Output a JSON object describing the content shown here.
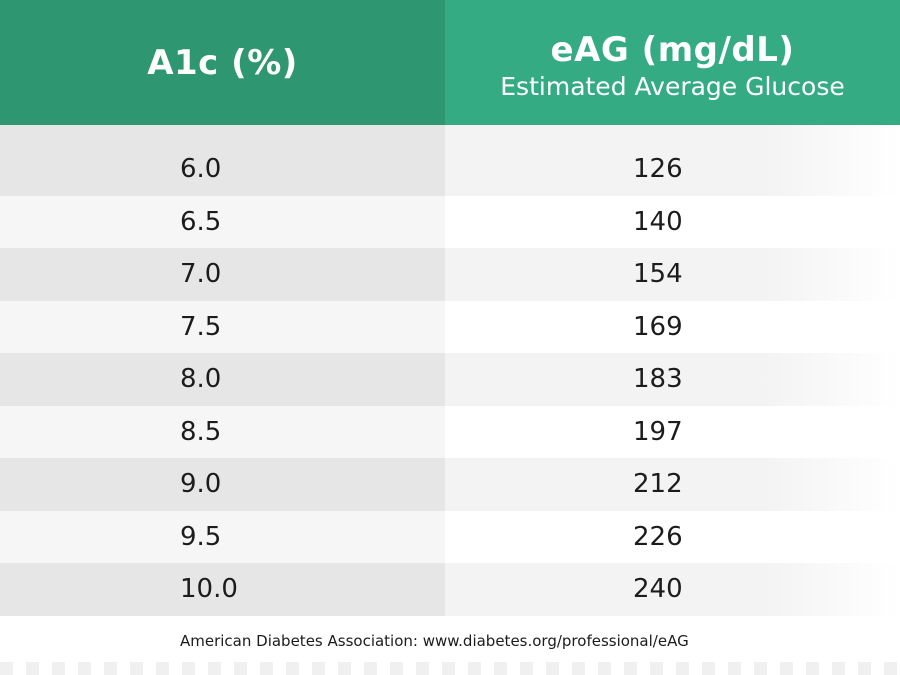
{
  "header": {
    "col1_title": "A1c (%)",
    "col2_title": "eAG (mg/dL)",
    "col2_subtitle": "Estimated Average Glucose"
  },
  "rows": [
    {
      "a1c": "6.0",
      "eag": "126"
    },
    {
      "a1c": "6.5",
      "eag": "140"
    },
    {
      "a1c": "7.0",
      "eag": "154"
    },
    {
      "a1c": "7.5",
      "eag": "169"
    },
    {
      "a1c": "8.0",
      "eag": "183"
    },
    {
      "a1c": "8.5",
      "eag": "197"
    },
    {
      "a1c": "9.0",
      "eag": "212"
    },
    {
      "a1c": "9.5",
      "eag": "226"
    },
    {
      "a1c": "10.0",
      "eag": "240"
    }
  ],
  "source": "American Diabetes Association: www.diabetes.org/professional/eAG",
  "colors": {
    "header_left": "#2e9772",
    "header_right": "#35ab84"
  }
}
